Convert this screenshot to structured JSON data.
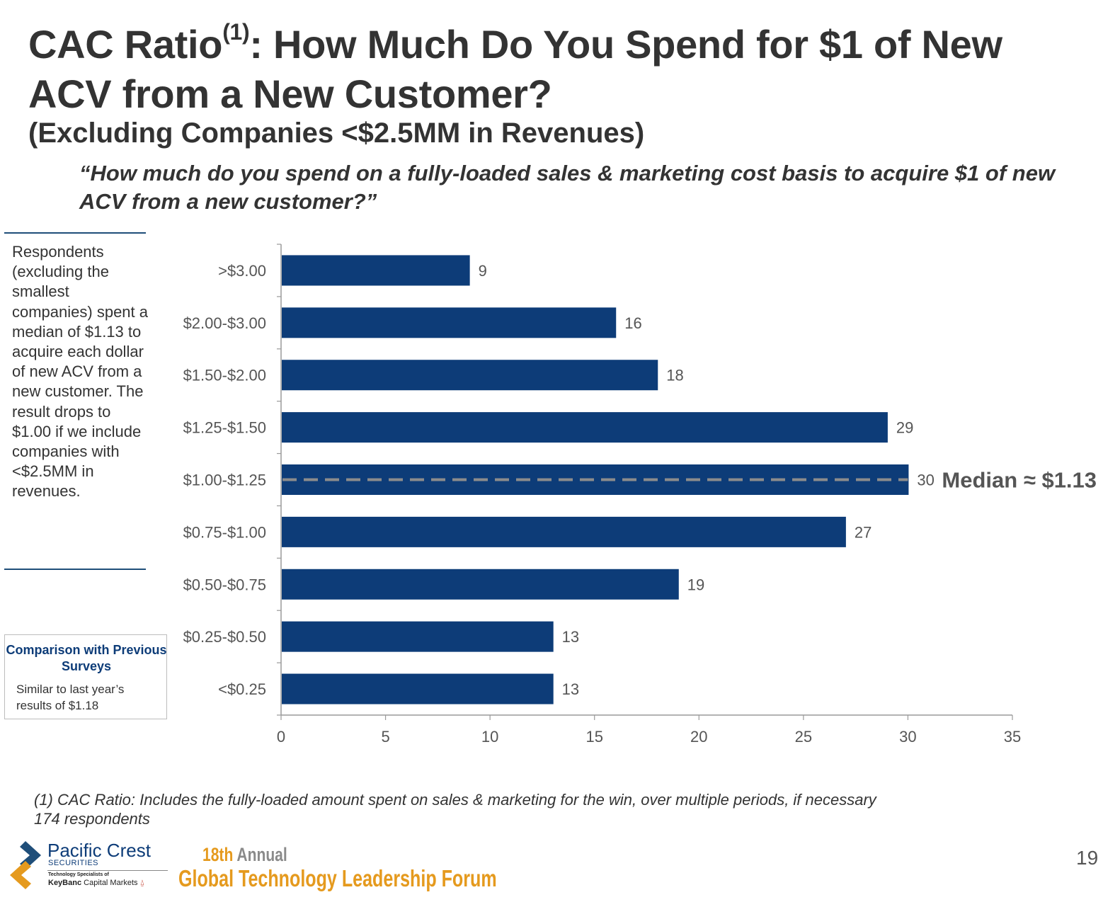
{
  "header": {
    "title_part1": "CAC Ratio",
    "title_sup": "(1)",
    "title_part2": ": How Much Do You Spend for $1 of New",
    "title_line2": "ACV from a New Customer?",
    "subtitle": "(Excluding Companies <$2.5MM in Revenues)",
    "question": "“How much do you spend on a fully-loaded sales & marketing cost basis to acquire $1 of new ACV from a new customer?”"
  },
  "sidebar": {
    "note": "Respondents (excluding the smallest companies) spent a median of $1.13 to acquire each dollar of new ACV from a new customer. The result drops to $1.00 if we include companies with <$2.5MM in revenues.",
    "comparison_title": "Comparison with Previous Surveys",
    "comparison_text": "Similar to last year’s results of $1.18"
  },
  "chart_data": {
    "type": "bar",
    "orientation": "horizontal",
    "categories": [
      ">$3.00",
      "$2.00-$3.00",
      "$1.50-$2.00",
      "$1.25-$1.50",
      "$1.00-$1.25",
      "$0.75-$1.00",
      "$0.50-$0.75",
      "$0.25-$0.50",
      "<$0.25"
    ],
    "values": [
      9,
      16,
      18,
      29,
      30,
      27,
      19,
      13,
      13
    ],
    "xlim": [
      0,
      35
    ],
    "xticks": [
      0,
      5,
      10,
      15,
      20,
      25,
      30,
      35
    ],
    "median_label": "Median ≈ $1.13",
    "median_category": "$1.00-$1.25",
    "bar_color": "#0d3c78",
    "median_line_color": "#8c8c8c",
    "grid": false
  },
  "footer": {
    "footnote_line1": "(1) CAC Ratio: Includes the fully-loaded amount spent on sales & marketing for the win, over multiple periods, if necessary",
    "footnote_line2": "174 respondents",
    "logo_name": "Pacific Crest",
    "logo_sub": "SECURITIES",
    "logo_tag1": "Technology Specialists of",
    "logo_tag2_bold": "KeyBanc",
    "logo_tag2_rest": " Capital Markets",
    "forum_ordinal": "18th",
    "forum_annual": " Annual",
    "forum_name": "Global Technology Leadership Forum",
    "page_number": "19"
  }
}
